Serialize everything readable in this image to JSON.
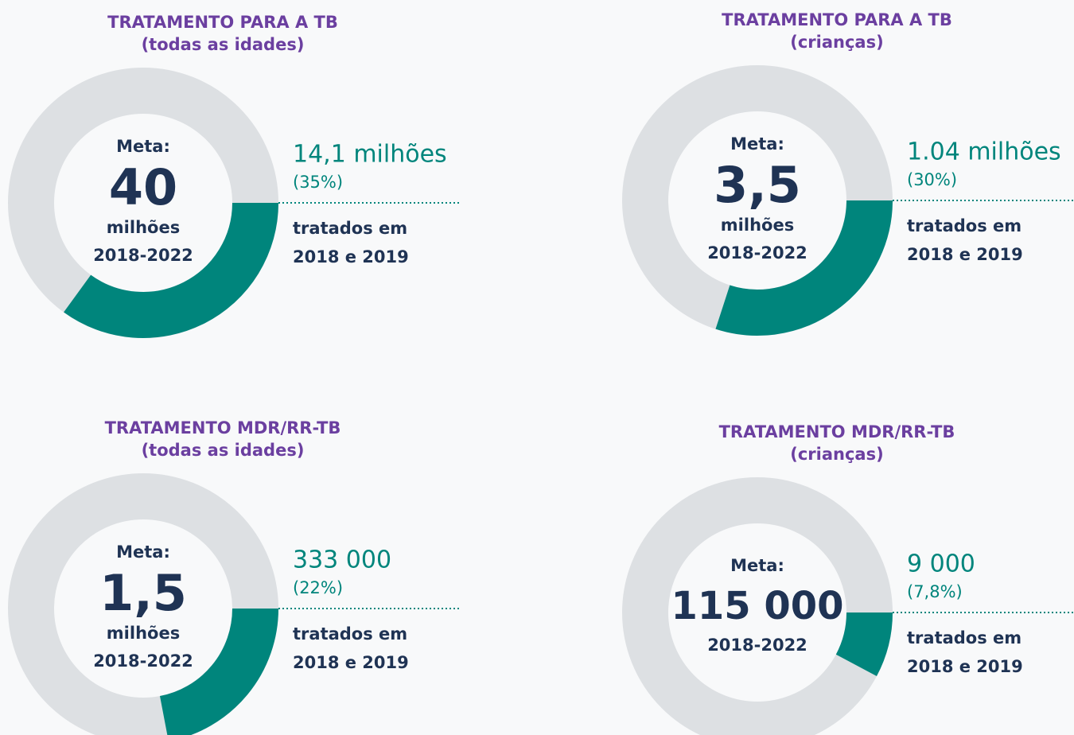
{
  "chart_data": [
    {
      "type": "donut",
      "title": "TRATAMENTO PARA A TB",
      "subtitle": "(todas as idades)",
      "center_label": "Meta:",
      "target": "40",
      "target_unit": "milhões",
      "period": "2018-2022",
      "callout": "14,1 milhões",
      "values": [
        35
      ],
      "value_labels": [
        "(35%)"
      ],
      "note": [
        "tratados em",
        "2018 e 2019"
      ],
      "color": "#00857c",
      "track_color": "#dde0e3"
    },
    {
      "type": "donut",
      "title": "TRATAMENTO PARA A TB",
      "subtitle": "(crianças)",
      "center_label": "Meta:",
      "target": "3,5",
      "target_unit": "milhões",
      "period": "2018-2022",
      "callout": "1.04 milhões",
      "values": [
        30
      ],
      "value_labels": [
        "(30%)"
      ],
      "note": [
        "tratados em",
        "2018 e 2019"
      ],
      "color": "#00857c",
      "track_color": "#dde0e3"
    },
    {
      "type": "donut",
      "title": "TRATAMENTO MDR/RR-TB",
      "subtitle": "(todas as idades)",
      "center_label": "Meta:",
      "target": "1,5",
      "target_unit": "milhões",
      "period": "2018-2022",
      "callout": "333 000",
      "values": [
        22
      ],
      "value_labels": [
        "(22%)"
      ],
      "note": [
        "tratados em",
        "2018 e 2019"
      ],
      "color": "#00857c",
      "track_color": "#dde0e3"
    },
    {
      "type": "donut",
      "title": "TRATAMENTO MDR/RR-TB",
      "subtitle": "(crianças)",
      "center_label": "Meta:",
      "target": "115 000",
      "period": "2018-2022",
      "callout": "9 000",
      "values": [
        7.8
      ],
      "value_labels": [
        "(7,8%)"
      ],
      "note": [
        "tratados em",
        "2018 e 2019"
      ],
      "color": "#00857c",
      "track_color": "#dde0e3"
    }
  ]
}
